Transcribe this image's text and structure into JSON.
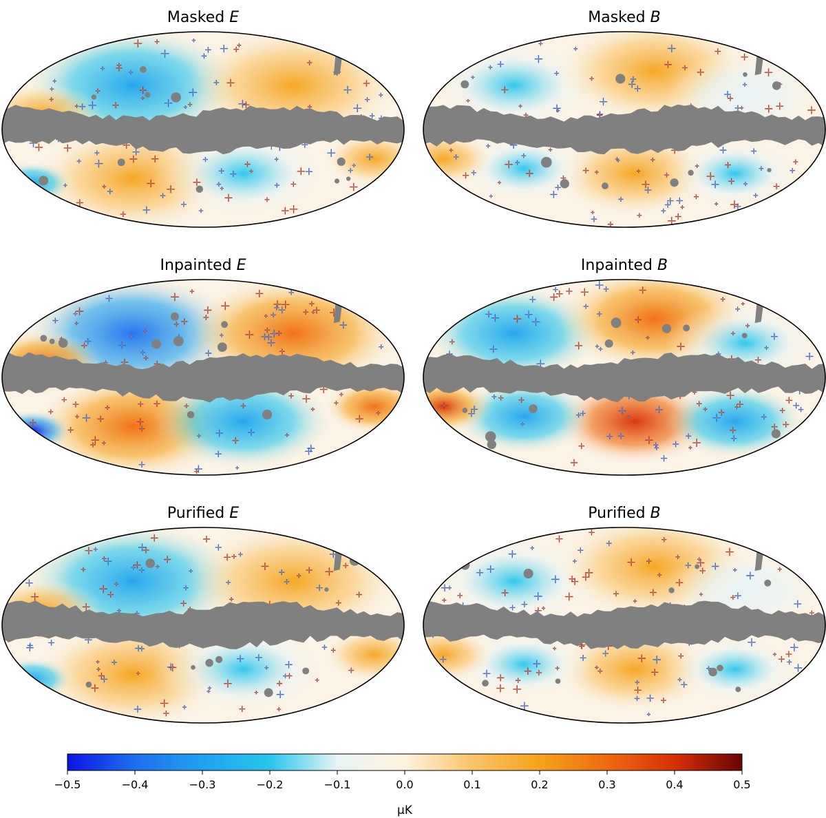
{
  "colors": {
    "mask": "#808080",
    "scale": [
      "#0a14e6",
      "#1f6fee",
      "#1fa2f0",
      "#27c6ec",
      "#e8f3f5",
      "#fff2dd",
      "#f9c46a",
      "#f5a21a",
      "#ef6a10",
      "#d63006",
      "#6a0400"
    ]
  },
  "chart_data": {
    "type": "heatmap",
    "projection": "mollweide",
    "panels": [
      {
        "title_prefix": "Masked",
        "title_var": "E",
        "style": "E",
        "intensity": 0.75
      },
      {
        "title_prefix": "Masked",
        "title_var": "B",
        "style": "B",
        "intensity": 0.7
      },
      {
        "title_prefix": "Inpainted",
        "title_var": "E",
        "style": "E",
        "intensity": 1.25
      },
      {
        "title_prefix": "Inpainted",
        "title_var": "B",
        "style": "B",
        "intensity": 1.2
      },
      {
        "title_prefix": "Purified",
        "title_var": "E",
        "style": "E",
        "intensity": 0.8
      },
      {
        "title_prefix": "Purified",
        "title_var": "B",
        "style": "B",
        "intensity": 0.7
      }
    ],
    "colorbar": {
      "range": [
        -0.5,
        0.5
      ],
      "ticks": [
        {
          "value": -0.5,
          "label": "−0.5"
        },
        {
          "value": -0.4,
          "label": "−0.4"
        },
        {
          "value": -0.3,
          "label": "−0.3"
        },
        {
          "value": -0.2,
          "label": "−0.2"
        },
        {
          "value": -0.1,
          "label": "−0.1"
        },
        {
          "value": 0.0,
          "label": "0.0"
        },
        {
          "value": 0.1,
          "label": "0.1"
        },
        {
          "value": 0.2,
          "label": "0.2"
        },
        {
          "value": 0.3,
          "label": "0.3"
        },
        {
          "value": 0.4,
          "label": "0.4"
        },
        {
          "value": 0.5,
          "label": "0.5"
        }
      ],
      "unit": "μK"
    }
  }
}
